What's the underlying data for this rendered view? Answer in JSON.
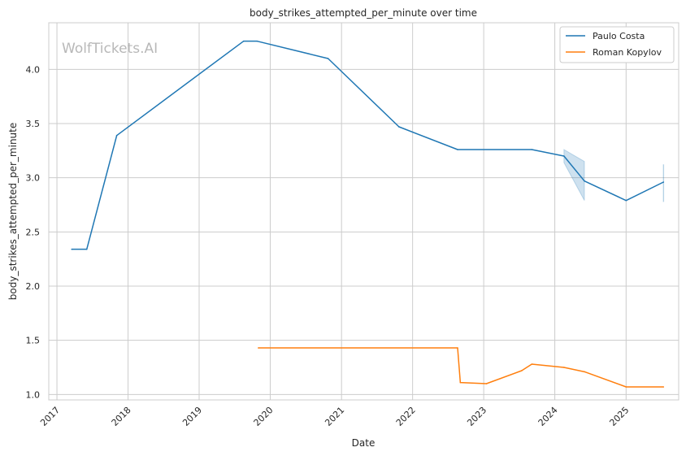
{
  "chart_data": {
    "type": "line",
    "title": "body_strikes_attempted_per_minute over time",
    "xlabel": "Date",
    "ylabel": "body_strikes_attempted_per_minute",
    "watermark": "WolfTickets.AI",
    "xlim": [
      "2016-11-20",
      "2025-09-28"
    ],
    "ylim": [
      0.95,
      4.43
    ],
    "x_ticks": [
      "2017",
      "2018",
      "2019",
      "2020",
      "2021",
      "2022",
      "2023",
      "2024",
      "2025"
    ],
    "y_ticks": [
      "1.0",
      "1.5",
      "2.0",
      "2.5",
      "3.0",
      "3.5",
      "4.0"
    ],
    "grid": true,
    "legend_position": "top-right",
    "series": [
      {
        "name": "Paulo Costa",
        "color": "#1f77b4",
        "points": [
          {
            "x": "2017-03-18",
            "y": 2.34
          },
          {
            "x": "2017-06-03",
            "y": 2.34
          },
          {
            "x": "2017-11-04",
            "y": 3.39
          },
          {
            "x": "2019-08-17",
            "y": 4.26
          },
          {
            "x": "2019-10-26",
            "y": 4.26
          },
          {
            "x": "2020-10-24",
            "y": 4.1
          },
          {
            "x": "2021-10-23",
            "y": 3.47
          },
          {
            "x": "2022-08-20",
            "y": 3.26
          },
          {
            "x": "2023-09-05",
            "y": 3.26
          },
          {
            "x": "2024-02-17",
            "y": 3.2
          },
          {
            "x": "2024-06-01",
            "y": 2.97
          },
          {
            "x": "2025-01-01",
            "y": 2.79
          },
          {
            "x": "2025-07-12",
            "y": 2.96
          }
        ],
        "bands": [
          {
            "points": [
              {
                "x": "2024-02-17",
                "lo": 3.14,
                "hi": 3.26
              },
              {
                "x": "2024-06-01",
                "lo": 2.79,
                "hi": 3.15
              }
            ]
          },
          {
            "points": [
              {
                "x": "2025-07-11",
                "lo": 2.78,
                "hi": 3.12
              },
              {
                "x": "2025-07-13",
                "lo": 2.78,
                "hi": 3.12
              }
            ]
          }
        ]
      },
      {
        "name": "Roman Kopylov",
        "color": "#ff7f0e",
        "points": [
          {
            "x": "2019-11-01",
            "y": 1.43
          },
          {
            "x": "2022-08-20",
            "y": 1.43
          },
          {
            "x": "2022-09-03",
            "y": 1.11
          },
          {
            "x": "2023-01-15",
            "y": 1.1
          },
          {
            "x": "2023-07-15",
            "y": 1.22
          },
          {
            "x": "2023-09-05",
            "y": 1.28
          },
          {
            "x": "2024-02-17",
            "y": 1.25
          },
          {
            "x": "2024-06-01",
            "y": 1.21
          },
          {
            "x": "2025-01-01",
            "y": 1.07
          },
          {
            "x": "2025-07-12",
            "y": 1.07
          }
        ]
      }
    ]
  }
}
